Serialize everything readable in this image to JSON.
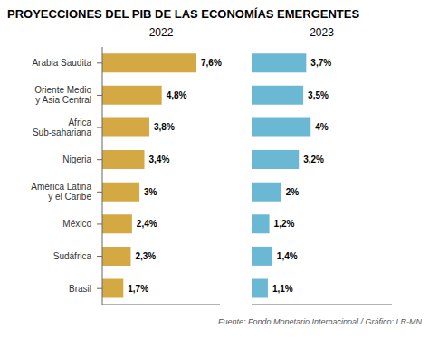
{
  "chart_data": {
    "type": "bar",
    "orientation": "horizontal",
    "title": "PROYECCIONES DEL PIB DE LAS ECONOMÍAS EMERGENTES",
    "categories": [
      "Arabia Saudita",
      "Oriente Medio\ny Asia Central",
      "Africa\nSub-sahariana",
      "Nigeria",
      "América Latina\ny el Caribe",
      "México",
      "Sudáfrica",
      "Brasil"
    ],
    "series": [
      {
        "name": "2022",
        "color": "#D4A843",
        "values": [
          7.6,
          4.8,
          3.8,
          3.4,
          3.0,
          2.4,
          2.3,
          1.7
        ],
        "value_labels": [
          "7,6%",
          "4,8%",
          "3,8%",
          "3,4%",
          "3%",
          "2,4%",
          "2,3%",
          "1,7%"
        ]
      },
      {
        "name": "2023",
        "color": "#6BB8D4",
        "values": [
          3.7,
          3.5,
          4.0,
          3.2,
          2.0,
          1.2,
          1.4,
          1.1
        ],
        "value_labels": [
          "3,7%",
          "3,5%",
          "4%",
          "3,2%",
          "2%",
          "1,2%",
          "1,4%",
          "1,1%"
        ]
      }
    ],
    "xlim": [
      0,
      9.5
    ],
    "tick_labels": false,
    "grid": false,
    "data_labels": true,
    "annotations": [
      {
        "text": "Fuente: Fondo Monetario Internacinoal / Gráfico: LR-MN"
      }
    ]
  }
}
